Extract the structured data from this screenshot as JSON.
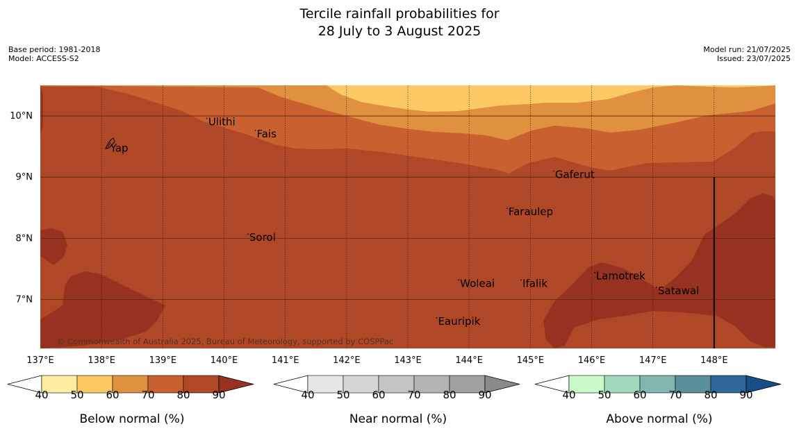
{
  "title": {
    "line1": "Tercile rainfall probabilities for",
    "line2": "28 July to 3 August 2025"
  },
  "meta_left": {
    "base_period": "Base period: 1981-2018",
    "model": "Model: ACCESS-S2"
  },
  "meta_right": {
    "model_run": "Model run: 21/07/2025",
    "issued": "Issued: 23/07/2025"
  },
  "map": {
    "lon_range": [
      137.0,
      149.0
    ],
    "lat_range": [
      6.2,
      10.5
    ],
    "lon_ticks": [
      {
        "value": 137,
        "label": "137°E"
      },
      {
        "value": 138,
        "label": "138°E"
      },
      {
        "value": 139,
        "label": "139°E"
      },
      {
        "value": 140,
        "label": "140°E"
      },
      {
        "value": 141,
        "label": "141°E"
      },
      {
        "value": 142,
        "label": "142°E"
      },
      {
        "value": 143,
        "label": "143°E"
      },
      {
        "value": 144,
        "label": "144°E"
      },
      {
        "value": 145,
        "label": "145°E"
      },
      {
        "value": 146,
        "label": "146°E"
      },
      {
        "value": 147,
        "label": "147°E"
      },
      {
        "value": 148,
        "label": "148°E"
      }
    ],
    "lat_ticks": [
      {
        "value": 10,
        "label": "10°N"
      },
      {
        "value": 9,
        "label": "9°N"
      },
      {
        "value": 8,
        "label": "8°N"
      },
      {
        "value": 7,
        "label": "7°N"
      }
    ],
    "places": [
      {
        "name": "Ulithi",
        "lon": 139.72,
        "lat": 9.96
      },
      {
        "name": "Fais",
        "lon": 140.51,
        "lat": 9.76
      },
      {
        "name": "Yap",
        "lon": 138.12,
        "lat": 9.53
      },
      {
        "name": "Gaferut",
        "lon": 145.38,
        "lat": 9.1
      },
      {
        "name": "Faraulep",
        "lon": 144.62,
        "lat": 8.49
      },
      {
        "name": "Sorol",
        "lon": 140.39,
        "lat": 8.07
      },
      {
        "name": "Lamotrek",
        "lon": 146.05,
        "lat": 7.44
      },
      {
        "name": "Woleai",
        "lon": 143.83,
        "lat": 7.32
      },
      {
        "name": "Ifalik",
        "lon": 144.85,
        "lat": 7.32
      },
      {
        "name": "Satawal",
        "lon": 147.06,
        "lat": 7.2
      },
      {
        "name": "Eauripik",
        "lon": 143.47,
        "lat": 6.7
      }
    ],
    "copyright": "© Commonwealth of Australia 2025, Bureau of Meteorology, supported by COSPPac",
    "boundary_line": {
      "lon": 148.0,
      "lat_top": 9.0,
      "lat_bottom": 6.2
    }
  },
  "colorbars": [
    {
      "label": "Below normal (%)",
      "ticks": [
        "40",
        "50",
        "60",
        "70",
        "80",
        "90"
      ],
      "colors": [
        "#ffffff",
        "#fdeda0",
        "#fdc964",
        "#e09140",
        "#c96030",
        "#ae4827",
        "#973120"
      ]
    },
    {
      "label": "Near normal (%)",
      "ticks": [
        "40",
        "50",
        "60",
        "70",
        "80",
        "90"
      ],
      "colors": [
        "#ffffff",
        "#e6e6e6",
        "#d5d5d5",
        "#c4c4c4",
        "#b3b3b3",
        "#a0a0a0",
        "#8a8a8a"
      ]
    },
    {
      "label": "Above normal (%)",
      "ticks": [
        "40",
        "50",
        "60",
        "70",
        "80",
        "90"
      ],
      "colors": [
        "#ffffff",
        "#c9fbc8",
        "#a2d9bd",
        "#80b6af",
        "#5a9099",
        "#2f6798",
        "#174d88"
      ]
    }
  ]
}
